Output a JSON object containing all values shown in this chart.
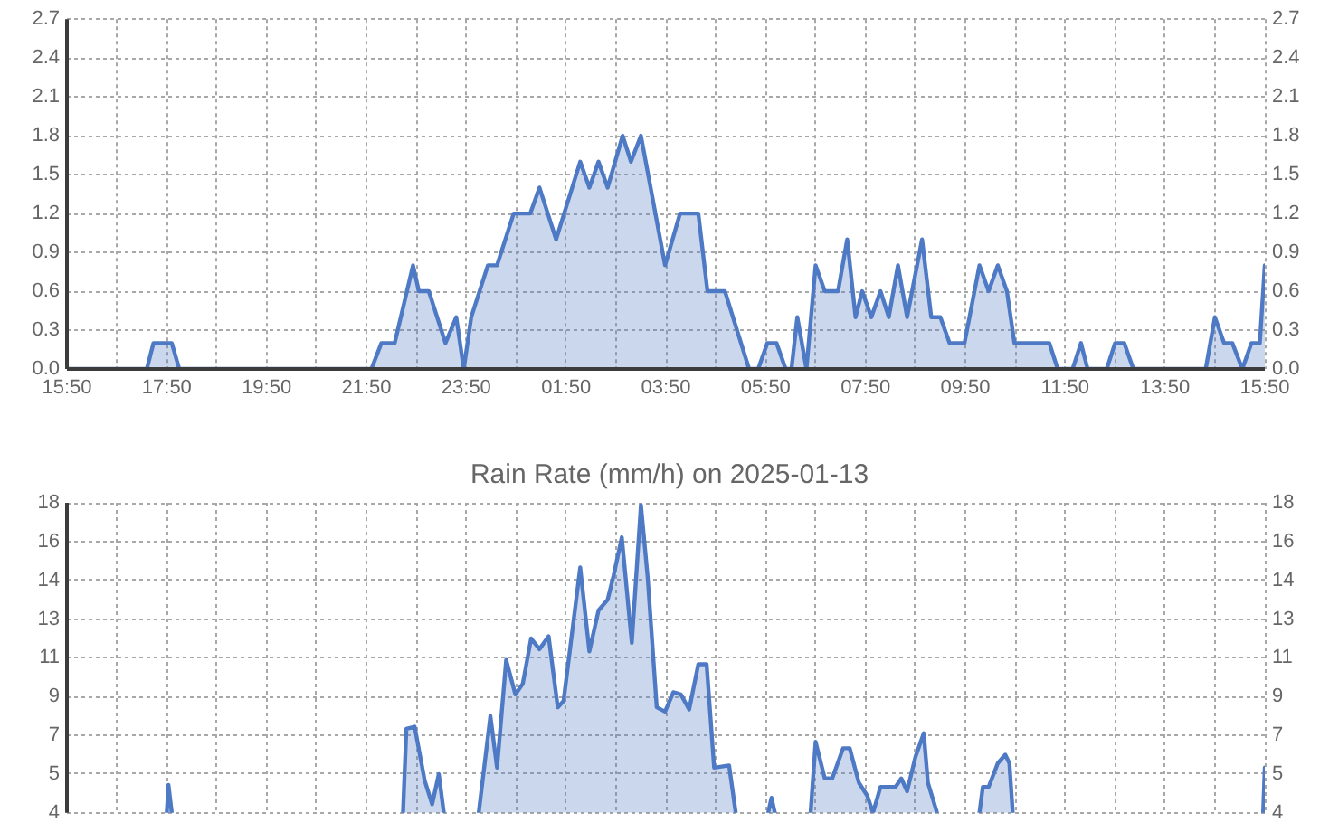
{
  "chart_data": [
    {
      "type": "area",
      "color": "#4e79c4",
      "grid": true,
      "x": [
        "2025-01-12T15:50",
        "2025-01-12T17:26",
        "2025-01-12T17:34",
        "2025-01-12T17:56",
        "2025-01-12T18:05",
        "2025-01-12T21:56",
        "2025-01-12T22:08",
        "2025-01-12T22:24",
        "2025-01-12T22:46",
        "2025-01-12T22:53",
        "2025-01-12T23:05",
        "2025-01-12T23:25",
        "2025-01-12T23:38",
        "2025-01-12T23:47",
        "2025-01-12T23:56",
        "2025-01-13T00:16",
        "2025-01-13T00:27",
        "2025-01-13T00:47",
        "2025-01-13T01:07",
        "2025-01-13T01:18",
        "2025-01-13T01:38",
        "2025-01-13T02:07",
        "2025-01-13T02:18",
        "2025-01-13T02:29",
        "2025-01-13T02:40",
        "2025-01-13T02:58",
        "2025-01-13T03:08",
        "2025-01-13T03:20",
        "2025-01-13T03:49",
        "2025-01-13T04:07",
        "2025-01-13T04:29",
        "2025-01-13T04:40",
        "2025-01-13T05:01",
        "2025-01-13T05:30",
        "2025-01-13T05:41",
        "2025-01-13T05:52",
        "2025-01-13T06:03",
        "2025-01-13T06:14",
        "2025-01-13T06:21",
        "2025-01-13T06:28",
        "2025-01-13T06:39",
        "2025-01-13T06:50",
        "2025-01-13T07:01",
        "2025-01-13T07:17",
        "2025-01-13T07:28",
        "2025-01-13T07:38",
        "2025-01-13T07:46",
        "2025-01-13T07:57",
        "2025-01-13T08:08",
        "2025-01-13T08:18",
        "2025-01-13T08:29",
        "2025-01-13T08:40",
        "2025-01-13T08:58",
        "2025-01-13T09:09",
        "2025-01-13T09:20",
        "2025-01-13T09:31",
        "2025-01-13T09:49",
        "2025-01-13T10:07",
        "2025-01-13T10:18",
        "2025-01-13T10:29",
        "2025-01-13T10:40",
        "2025-01-13T10:49",
        "2025-01-13T11:31",
        "2025-01-13T11:41",
        "2025-01-13T11:59",
        "2025-01-13T12:09",
        "2025-01-13T12:17",
        "2025-01-13T12:40",
        "2025-01-13T12:50",
        "2025-01-13T13:01",
        "2025-01-13T13:12",
        "2025-01-13T14:39",
        "2025-01-13T14:50",
        "2025-01-13T15:01",
        "2025-01-13T15:11",
        "2025-01-13T15:23",
        "2025-01-13T15:34",
        "2025-01-13T15:44",
        "2025-01-13T15:50"
      ],
      "values": [
        0,
        0,
        0.2,
        0.2,
        0,
        0,
        0.2,
        0.2,
        0.8,
        0.6,
        0.6,
        0.2,
        0.4,
        0,
        0.4,
        0.8,
        0.8,
        1.2,
        1.2,
        1.4,
        1.0,
        1.6,
        1.4,
        1.6,
        1.4,
        1.8,
        1.6,
        1.8,
        0.8,
        1.2,
        1.2,
        0.6,
        0.6,
        0,
        0,
        0.2,
        0.2,
        0,
        0,
        0.4,
        0,
        0.8,
        0.6,
        0.6,
        1.0,
        0.4,
        0.6,
        0.4,
        0.6,
        0.4,
        0.8,
        0.4,
        1.0,
        0.4,
        0.4,
        0.2,
        0.2,
        0.8,
        0.6,
        0.8,
        0.6,
        0.2,
        0.2,
        0,
        0,
        0.2,
        0,
        0,
        0.2,
        0.2,
        0,
        0,
        0.4,
        0.2,
        0.2,
        0,
        0.2,
        0.2,
        0.8
      ],
      "xlim": [
        "2025-01-12T15:50",
        "2025-01-13T15:50"
      ],
      "xticks": [
        {
          "value": "2025-01-12T15:50",
          "label": "15:50"
        },
        {
          "value": "2025-01-12T16:50",
          "label": null
        },
        {
          "value": "2025-01-12T17:50",
          "label": "17:50"
        },
        {
          "value": "2025-01-12T18:50",
          "label": null
        },
        {
          "value": "2025-01-12T19:50",
          "label": "19:50"
        },
        {
          "value": "2025-01-12T20:50",
          "label": null
        },
        {
          "value": "2025-01-12T21:50",
          "label": "21:50"
        },
        {
          "value": "2025-01-12T22:50",
          "label": null
        },
        {
          "value": "2025-01-12T23:50",
          "label": "23:50"
        },
        {
          "value": "2025-01-13T00:50",
          "label": null
        },
        {
          "value": "2025-01-13T01:50",
          "label": "01:50"
        },
        {
          "value": "2025-01-13T02:50",
          "label": null
        },
        {
          "value": "2025-01-13T03:50",
          "label": "03:50"
        },
        {
          "value": "2025-01-13T04:50",
          "label": null
        },
        {
          "value": "2025-01-13T05:50",
          "label": "05:50"
        },
        {
          "value": "2025-01-13T06:50",
          "label": null
        },
        {
          "value": "2025-01-13T07:50",
          "label": "07:50"
        },
        {
          "value": "2025-01-13T08:50",
          "label": null
        },
        {
          "value": "2025-01-13T09:50",
          "label": "09:50"
        },
        {
          "value": "2025-01-13T10:50",
          "label": null
        },
        {
          "value": "2025-01-13T11:50",
          "label": "11:50"
        },
        {
          "value": "2025-01-13T12:50",
          "label": null
        },
        {
          "value": "2025-01-13T13:50",
          "label": "13:50"
        },
        {
          "value": "2025-01-13T14:50",
          "label": null
        },
        {
          "value": "2025-01-13T15:50",
          "label": "15:50"
        }
      ],
      "ylim": [
        0,
        2.7
      ],
      "yticks": [
        {
          "value": 0,
          "label": "0.0"
        },
        0.3,
        0.6,
        0.9,
        1.2,
        1.5,
        1.8,
        2.1,
        2.4,
        2.7
      ],
      "y2lim": [
        0,
        2.7
      ],
      "y2ticks": [
        {
          "value": 0,
          "label": "0.0"
        },
        0.3,
        0.6,
        0.9,
        1.2,
        1.5,
        1.8,
        2.1,
        2.4,
        2.7
      ]
    },
    {
      "type": "area",
      "title": "Rain Rate (mm/h) on 2025-01-13",
      "color": "#4e79c4",
      "grid": true,
      "tick_labels": "y",
      "x": [
        "2025-01-12T17:50",
        "2025-01-12T17:52",
        "2025-01-12T17:56",
        "2025-01-12T19:55",
        "2025-01-12T22:34",
        "2025-01-12T22:38",
        "2025-01-12T22:48",
        "2025-01-12T23:00",
        "2025-01-12T23:09",
        "2025-01-12T23:17",
        "2025-01-12T23:23",
        "2025-01-12T23:44",
        "2025-01-13T00:05",
        "2025-01-13T00:19",
        "2025-01-13T00:27",
        "2025-01-13T00:38",
        "2025-01-13T00:49",
        "2025-01-13T00:58",
        "2025-01-13T01:08",
        "2025-01-13T01:18",
        "2025-01-13T01:29",
        "2025-01-13T01:40",
        "2025-01-13T01:47",
        "2025-01-13T02:07",
        "2025-01-13T02:18",
        "2025-01-13T02:29",
        "2025-01-13T02:40",
        "2025-01-13T02:47",
        "2025-01-13T02:57",
        "2025-01-13T03:09",
        "2025-01-13T03:20",
        "2025-01-13T03:28",
        "2025-01-13T03:39",
        "2025-01-13T03:49",
        "2025-01-13T03:59",
        "2025-01-13T04:08",
        "2025-01-13T04:18",
        "2025-01-13T04:29",
        "2025-01-13T04:39",
        "2025-01-13T04:48",
        "2025-01-13T05:06",
        "2025-01-13T05:14",
        "2025-01-13T05:32",
        "2025-01-13T05:53",
        "2025-01-13T05:57",
        "2025-01-13T06:01",
        "2025-01-13T06:22",
        "2025-01-13T06:44",
        "2025-01-13T06:50",
        "2025-01-13T07:01",
        "2025-01-13T07:10",
        "2025-01-13T07:23",
        "2025-01-13T07:31",
        "2025-01-13T07:42",
        "2025-01-13T07:52",
        "2025-01-13T07:59",
        "2025-01-13T08:08",
        "2025-01-13T08:26",
        "2025-01-13T08:33",
        "2025-01-13T08:40",
        "2025-01-13T08:50",
        "2025-01-13T09:00",
        "2025-01-13T09:05",
        "2025-01-13T09:16",
        "2025-01-13T09:42",
        "2025-01-13T10:07",
        "2025-01-13T10:11",
        "2025-01-13T10:18",
        "2025-01-13T10:29",
        "2025-01-13T10:38",
        "2025-01-13T10:43",
        "2025-01-13T10:47",
        "2025-01-13T12:58",
        "2025-01-13T15:48",
        "2025-01-13T15:50"
      ],
      "values": [
        3.6,
        4.9,
        3.6,
        null,
        3.6,
        7.5,
        7.6,
        5.1,
        4.0,
        5.4,
        3.6,
        null,
        3.6,
        8.1,
        5.7,
        10.7,
        9.1,
        9.6,
        11.7,
        11.2,
        11.8,
        8.5,
        8.8,
        15.0,
        11.1,
        13.0,
        13.5,
        14.6,
        16.4,
        11.5,
        17.9,
        14.6,
        8.5,
        8.3,
        9.2,
        9.1,
        8.4,
        10.5,
        10.5,
        5.7,
        5.8,
        3.6,
        null,
        3.6,
        4.3,
        3.6,
        null,
        3.6,
        6.9,
        5.2,
        5.2,
        6.6,
        6.6,
        5.0,
        4.4,
        3.6,
        4.8,
        4.8,
        5.2,
        4.6,
        6.2,
        7.3,
        5.0,
        3.6,
        null,
        3.6,
        4.8,
        4.8,
        5.9,
        6.3,
        5.9,
        3.6,
        null,
        3.6,
        5.7
      ],
      "xlim": [
        "2025-01-12T15:50",
        "2025-01-13T15:50"
      ],
      "xticks": [
        {
          "value": "2025-01-12T15:50",
          "label": null
        },
        {
          "value": "2025-01-12T16:50",
          "label": null
        },
        {
          "value": "2025-01-12T17:50",
          "label": null
        },
        {
          "value": "2025-01-12T18:50",
          "label": null
        },
        {
          "value": "2025-01-12T19:50",
          "label": null
        },
        {
          "value": "2025-01-12T20:50",
          "label": null
        },
        {
          "value": "2025-01-12T21:50",
          "label": null
        },
        {
          "value": "2025-01-12T22:50",
          "label": null
        },
        {
          "value": "2025-01-12T23:50",
          "label": null
        },
        {
          "value": "2025-01-13T00:50",
          "label": null
        },
        {
          "value": "2025-01-13T01:50",
          "label": null
        },
        {
          "value": "2025-01-13T02:50",
          "label": null
        },
        {
          "value": "2025-01-13T03:50",
          "label": null
        },
        {
          "value": "2025-01-13T04:50",
          "label": null
        },
        {
          "value": "2025-01-13T05:50",
          "label": null
        },
        {
          "value": "2025-01-13T06:50",
          "label": null
        },
        {
          "value": "2025-01-13T07:50",
          "label": null
        },
        {
          "value": "2025-01-13T08:50",
          "label": null
        },
        {
          "value": "2025-01-13T09:50",
          "label": null
        },
        {
          "value": "2025-01-13T10:50",
          "label": null
        },
        {
          "value": "2025-01-13T11:50",
          "label": null
        },
        {
          "value": "2025-01-13T12:50",
          "label": null
        },
        {
          "value": "2025-01-13T13:50",
          "label": null
        },
        {
          "value": "2025-01-13T14:50",
          "label": null
        },
        {
          "value": "2025-01-13T15:50",
          "label": null
        }
      ],
      "ylim": [
        3.6,
        18
      ],
      "yticks": [
        {
          "value": 3.6,
          "label": "4"
        },
        {
          "value": 5.4,
          "label": "5"
        },
        {
          "value": 7.2,
          "label": "7"
        },
        9,
        {
          "value": 10.8,
          "label": "11"
        },
        {
          "value": 12.6,
          "label": "13"
        },
        {
          "value": 14.4,
          "label": "14"
        },
        {
          "value": 16.2,
          "label": "16"
        },
        18
      ],
      "y2lim": [
        3.6,
        18
      ],
      "y2ticks": [
        {
          "value": 3.6,
          "label": "4"
        },
        {
          "value": 5.4,
          "label": "5"
        },
        {
          "value": 7.2,
          "label": "7"
        },
        9,
        {
          "value": 10.8,
          "label": "11"
        },
        {
          "value": 12.6,
          "label": "13"
        },
        {
          "value": 14.4,
          "label": "14"
        },
        {
          "value": 16.2,
          "label": "16"
        },
        18
      ]
    }
  ]
}
